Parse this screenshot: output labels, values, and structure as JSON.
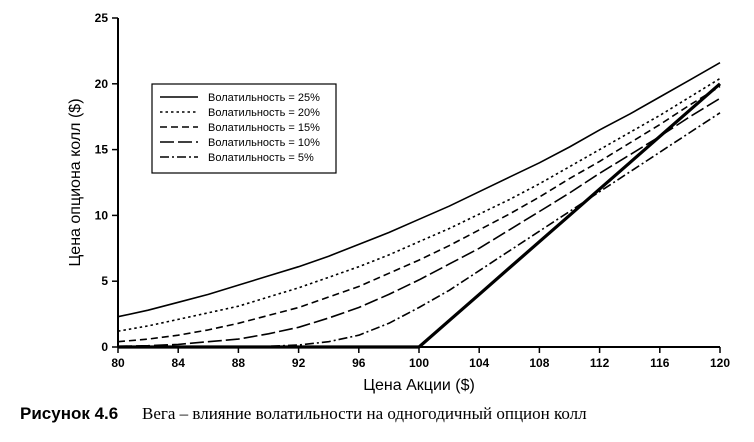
{
  "chart_data": {
    "type": "line",
    "xlabel": "Цена Акции ($)",
    "ylabel": "Цена опциона колл ($)",
    "xlim": [
      80,
      120
    ],
    "ylim": [
      0,
      25
    ],
    "xticks": [
      80,
      84,
      88,
      92,
      96,
      100,
      104,
      108,
      112,
      116,
      120
    ],
    "yticks": [
      0,
      5,
      10,
      15,
      20,
      25
    ],
    "grid": false,
    "legend_position": "upper-left",
    "x": [
      80,
      82,
      84,
      86,
      88,
      90,
      92,
      94,
      96,
      98,
      100,
      102,
      104,
      106,
      108,
      110,
      112,
      114,
      116,
      118,
      120
    ],
    "series": [
      {
        "name": "Волатильность = 25%",
        "dash": "solid",
        "values": [
          2.3,
          2.8,
          3.4,
          4.0,
          4.7,
          5.4,
          6.1,
          6.9,
          7.8,
          8.7,
          9.7,
          10.7,
          11.8,
          12.9,
          14.0,
          15.2,
          16.5,
          17.7,
          19.0,
          20.3,
          21.6
        ]
      },
      {
        "name": "Волатильность = 20%",
        "dash": "dotted",
        "values": [
          1.2,
          1.6,
          2.1,
          2.6,
          3.1,
          3.8,
          4.5,
          5.3,
          6.1,
          7.0,
          8.0,
          9.0,
          10.1,
          11.2,
          12.4,
          13.7,
          15.0,
          16.3,
          17.6,
          19.0,
          20.4
        ]
      },
      {
        "name": "Волатильность = 15%",
        "dash": "dashed",
        "values": [
          0.4,
          0.6,
          0.9,
          1.3,
          1.8,
          2.4,
          3.0,
          3.8,
          4.6,
          5.6,
          6.6,
          7.7,
          8.9,
          10.1,
          11.4,
          12.8,
          14.1,
          15.5,
          16.9,
          18.4,
          19.8
        ]
      },
      {
        "name": "Волатильность = 10%",
        "dash": "long-dash",
        "values": [
          0.05,
          0.1,
          0.2,
          0.4,
          0.6,
          1.0,
          1.5,
          2.2,
          3.0,
          4.0,
          5.1,
          6.3,
          7.5,
          8.9,
          10.3,
          11.7,
          13.2,
          14.6,
          16.0,
          17.5,
          18.9
        ]
      },
      {
        "name": "Волатильность = 5%",
        "dash": "dash-dot",
        "values": [
          0.0,
          0.0,
          0.0,
          0.0,
          0.0,
          0.05,
          0.15,
          0.4,
          0.9,
          1.8,
          3.0,
          4.3,
          5.8,
          7.3,
          8.8,
          10.3,
          11.8,
          13.3,
          14.8,
          16.3,
          17.8
        ]
      },
      {
        "name": "",
        "dash": "thick-solid",
        "values": [
          0,
          0,
          0,
          0,
          0,
          0,
          0,
          0,
          0,
          0,
          0,
          2,
          4,
          6,
          8,
          10,
          12,
          14,
          16,
          18,
          20
        ]
      }
    ]
  },
  "caption": {
    "figure_number": "Рисунок 4.6",
    "text": "Вега – влияние волатильности на одногодичный опцион колл"
  }
}
